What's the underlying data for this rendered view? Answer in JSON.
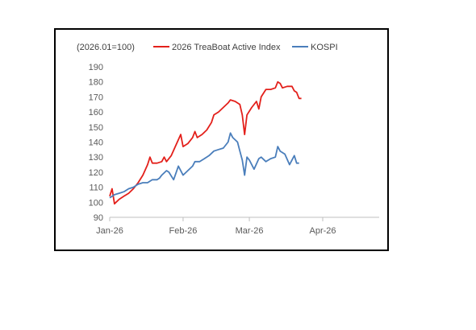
{
  "chart_data": {
    "type": "line",
    "note_label": "(2026.01=100)",
    "xlim": [
      "2026-01-01",
      "2026-04-01"
    ],
    "x_ticks": [
      {
        "date": "2026-01-01",
        "label": "Jan-26"
      },
      {
        "date": "2026-02-01",
        "label": "Feb-26"
      },
      {
        "date": "2026-03-01",
        "label": "Mar-26"
      },
      {
        "date": "2026-04-01",
        "label": "Apr-26"
      }
    ],
    "ylim": [
      90,
      190
    ],
    "y_ticks": [
      90,
      100,
      110,
      120,
      130,
      140,
      150,
      160,
      170,
      180,
      190
    ],
    "grid": false,
    "legend_position": "top",
    "series": [
      {
        "name": "2026 TreaBoat Active Index",
        "color": "#e3201b",
        "points": [
          [
            "2026-01-01",
            104
          ],
          [
            "2026-01-02",
            109
          ],
          [
            "2026-01-03",
            99
          ],
          [
            "2026-01-05",
            102
          ],
          [
            "2026-01-07",
            104
          ],
          [
            "2026-01-09",
            106
          ],
          [
            "2026-01-11",
            109
          ],
          [
            "2026-01-13",
            113
          ],
          [
            "2026-01-15",
            118
          ],
          [
            "2026-01-17",
            125
          ],
          [
            "2026-01-18",
            130
          ],
          [
            "2026-01-19",
            126
          ],
          [
            "2026-01-21",
            126
          ],
          [
            "2026-01-23",
            127
          ],
          [
            "2026-01-24",
            130
          ],
          [
            "2026-01-25",
            127
          ],
          [
            "2026-01-27",
            131
          ],
          [
            "2026-01-29",
            138
          ],
          [
            "2026-01-31",
            145
          ],
          [
            "2026-02-01",
            137
          ],
          [
            "2026-02-03",
            139
          ],
          [
            "2026-02-05",
            143
          ],
          [
            "2026-02-06",
            147
          ],
          [
            "2026-02-07",
            143
          ],
          [
            "2026-02-09",
            145
          ],
          [
            "2026-02-11",
            148
          ],
          [
            "2026-02-13",
            153
          ],
          [
            "2026-02-14",
            158
          ],
          [
            "2026-02-16",
            160
          ],
          [
            "2026-02-18",
            163
          ],
          [
            "2026-02-20",
            166
          ],
          [
            "2026-02-21",
            168
          ],
          [
            "2026-02-23",
            167
          ],
          [
            "2026-02-25",
            165
          ],
          [
            "2026-02-26",
            158
          ],
          [
            "2026-02-27",
            145
          ],
          [
            "2026-02-28",
            158
          ],
          [
            "2026-03-02",
            163
          ],
          [
            "2026-03-04",
            167
          ],
          [
            "2026-03-05",
            162
          ],
          [
            "2026-03-06",
            170
          ],
          [
            "2026-03-08",
            175
          ],
          [
            "2026-03-10",
            175
          ],
          [
            "2026-03-12",
            176
          ],
          [
            "2026-03-13",
            180
          ],
          [
            "2026-03-14",
            179
          ],
          [
            "2026-03-15",
            176
          ],
          [
            "2026-03-17",
            177
          ],
          [
            "2026-03-19",
            177
          ],
          [
            "2026-03-20",
            174
          ],
          [
            "2026-03-21",
            173
          ],
          [
            "2026-03-22",
            169
          ],
          [
            "2026-03-23",
            169
          ]
        ]
      },
      {
        "name": "KOSPI",
        "color": "#4a7ebb",
        "points": [
          [
            "2026-01-01",
            103
          ],
          [
            "2026-01-03",
            105
          ],
          [
            "2026-01-05",
            106
          ],
          [
            "2026-01-07",
            107
          ],
          [
            "2026-01-09",
            109
          ],
          [
            "2026-01-11",
            110
          ],
          [
            "2026-01-13",
            112
          ],
          [
            "2026-01-15",
            113
          ],
          [
            "2026-01-17",
            113
          ],
          [
            "2026-01-19",
            115
          ],
          [
            "2026-01-21",
            115
          ],
          [
            "2026-01-22",
            116
          ],
          [
            "2026-01-23",
            118
          ],
          [
            "2026-01-25",
            121
          ],
          [
            "2026-01-26",
            120
          ],
          [
            "2026-01-28",
            115
          ],
          [
            "2026-01-30",
            124
          ],
          [
            "2026-02-01",
            118
          ],
          [
            "2026-02-03",
            121
          ],
          [
            "2026-02-05",
            124
          ],
          [
            "2026-02-06",
            127
          ],
          [
            "2026-02-08",
            127
          ],
          [
            "2026-02-10",
            129
          ],
          [
            "2026-02-12",
            131
          ],
          [
            "2026-02-14",
            134
          ],
          [
            "2026-02-16",
            135
          ],
          [
            "2026-02-18",
            136
          ],
          [
            "2026-02-20",
            140
          ],
          [
            "2026-02-21",
            146
          ],
          [
            "2026-02-22",
            143
          ],
          [
            "2026-02-24",
            140
          ],
          [
            "2026-02-25",
            134
          ],
          [
            "2026-02-26",
            128
          ],
          [
            "2026-02-27",
            118
          ],
          [
            "2026-02-28",
            130
          ],
          [
            "2026-03-01",
            128
          ],
          [
            "2026-03-03",
            122
          ],
          [
            "2026-03-05",
            129
          ],
          [
            "2026-03-06",
            130
          ],
          [
            "2026-03-08",
            127
          ],
          [
            "2026-03-10",
            129
          ],
          [
            "2026-03-12",
            130
          ],
          [
            "2026-03-13",
            137
          ],
          [
            "2026-03-14",
            134
          ],
          [
            "2026-03-16",
            132
          ],
          [
            "2026-03-18",
            125
          ],
          [
            "2026-03-20",
            131
          ],
          [
            "2026-03-21",
            126
          ],
          [
            "2026-03-22",
            126
          ]
        ]
      }
    ]
  }
}
